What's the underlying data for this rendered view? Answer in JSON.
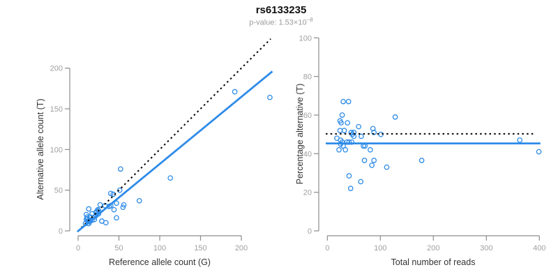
{
  "header": {
    "title": "rs6133235",
    "p_prefix": "p-value: 1.53×10",
    "p_exponent": "−8"
  },
  "colors": {
    "point_blue": "#2E8BE8",
    "line_blue": "#2E8BE8",
    "dotted_black": "#000000",
    "axis_gray": "#8c8c8c",
    "tick_label_gray": "#9f9f9f",
    "title_black": "#111111",
    "subtitle_gray": "#9b9b9b"
  },
  "chart_data": [
    {
      "type": "scatter",
      "xlabel": "Reference allele count (G)",
      "ylabel": "Alternative allele count (T)",
      "xlim": [
        0,
        200
      ],
      "ylim": [
        0,
        200
      ],
      "xticks": [
        0,
        50,
        100,
        150,
        200
      ],
      "yticks": [
        0,
        50,
        100,
        150,
        200
      ],
      "grid": false,
      "legend": "none",
      "points": [
        [
          10,
          20
        ],
        [
          13,
          27
        ],
        [
          11,
          17
        ],
        [
          52,
          76
        ],
        [
          10,
          14
        ],
        [
          11,
          15
        ],
        [
          17,
          21
        ],
        [
          27,
          32
        ],
        [
          12,
          12
        ],
        [
          15,
          17
        ],
        [
          40,
          46
        ],
        [
          22,
          23
        ],
        [
          24,
          26
        ],
        [
          43,
          45
        ],
        [
          23,
          24
        ],
        [
          25,
          25
        ],
        [
          33,
          31
        ],
        [
          51,
          50
        ],
        [
          9,
          9
        ],
        [
          13,
          12
        ],
        [
          15,
          13
        ],
        [
          20,
          17
        ],
        [
          22,
          19
        ],
        [
          25,
          21
        ],
        [
          192,
          171
        ],
        [
          14,
          11
        ],
        [
          17,
          13
        ],
        [
          38,
          30
        ],
        [
          40,
          31
        ],
        [
          13,
          9
        ],
        [
          20,
          14
        ],
        [
          47,
          34
        ],
        [
          235,
          164
        ],
        [
          44,
          26
        ],
        [
          56,
          32
        ],
        [
          113,
          65
        ],
        [
          55,
          29
        ],
        [
          75,
          37
        ],
        [
          29,
          12
        ],
        [
          47,
          16
        ],
        [
          34,
          10
        ]
      ],
      "lines": [
        {
          "name": "identity-line",
          "style": "dotted",
          "color": "#000000",
          "from": [
            4,
            4
          ],
          "to": [
            236,
            236
          ]
        },
        {
          "name": "regression-line",
          "style": "solid",
          "color": "#2E8BE8",
          "from": [
            -1,
            -1
          ],
          "to": [
            238,
            196
          ]
        }
      ]
    },
    {
      "type": "scatter",
      "xlabel": "Total number of reads",
      "ylabel": "Percentage alternative (T)",
      "xlim": [
        0,
        400
      ],
      "ylim": [
        0,
        100
      ],
      "xticks": [
        0,
        100,
        200,
        300,
        400
      ],
      "yticks": [
        0,
        20,
        40,
        60,
        80,
        100
      ],
      "grid": false,
      "legend": "none",
      "points": [
        [
          30,
          67
        ],
        [
          40,
          67
        ],
        [
          28,
          60
        ],
        [
          128,
          59
        ],
        [
          24,
          57
        ],
        [
          26,
          56
        ],
        [
          38,
          56
        ],
        [
          59,
          54
        ],
        [
          24,
          52
        ],
        [
          32,
          52
        ],
        [
          86,
          53
        ],
        [
          45,
          51
        ],
        [
          50,
          51
        ],
        [
          88,
          51
        ],
        [
          47,
          50
        ],
        [
          50,
          49
        ],
        [
          64,
          49
        ],
        [
          101,
          50
        ],
        [
          18,
          48
        ],
        [
          25,
          47
        ],
        [
          28,
          46
        ],
        [
          37,
          46
        ],
        [
          41,
          46
        ],
        [
          46,
          46
        ],
        [
          363,
          47
        ],
        [
          25,
          45
        ],
        [
          30,
          44
        ],
        [
          68,
          44
        ],
        [
          71,
          44
        ],
        [
          22,
          42
        ],
        [
          34,
          42
        ],
        [
          81,
          42
        ],
        [
          399,
          41
        ],
        [
          70,
          36.5
        ],
        [
          88,
          36.5
        ],
        [
          178,
          36.5
        ],
        [
          84,
          34
        ],
        [
          112,
          33
        ],
        [
          41,
          28.5
        ],
        [
          63,
          25.5
        ],
        [
          44,
          22
        ]
      ],
      "lines": [
        {
          "name": "expected-percentage-line",
          "style": "dotted",
          "color": "#000000",
          "from": [
            -3,
            50.3
          ],
          "to": [
            389,
            50.3
          ]
        },
        {
          "name": "mean-percentage-line",
          "style": "solid",
          "color": "#2E8BE8",
          "from": [
            -3,
            45.3
          ],
          "to": [
            402,
            45.3
          ]
        }
      ]
    }
  ]
}
